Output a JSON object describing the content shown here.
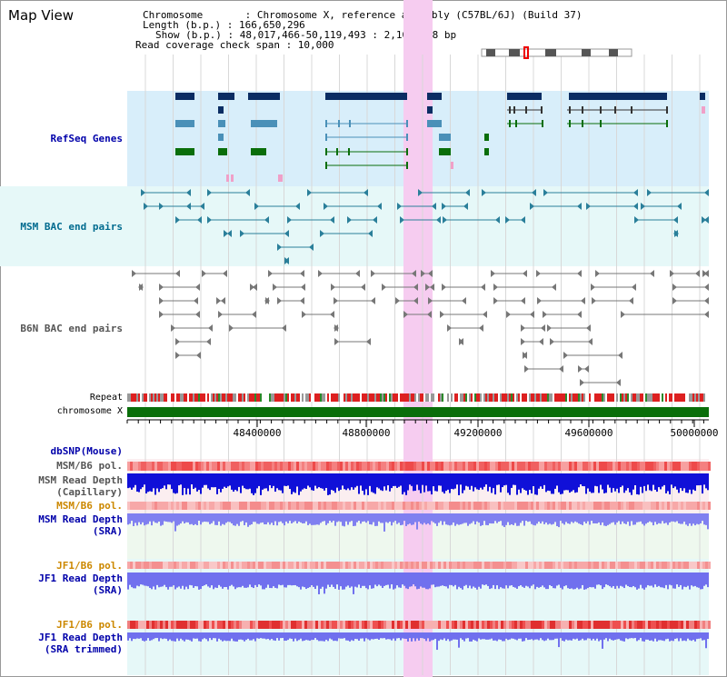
{
  "view_title": "Map View",
  "info": {
    "chromosome": "Chromosome       : Chromosome X, reference assembly (C57BL/6J) (Build 37)",
    "length": "Length (b.p.) : 166,650,296",
    "show": "Show (b.p.) : 48,017,466-50,119,493 : 2,102,028 bp",
    "coverage": "Read coverage check span : 10,000"
  },
  "tracks": {
    "refseq": "RefSeq Genes",
    "msm_bac": "MSM BAC end pairs",
    "b6n_bac": "B6N BAC end pairs",
    "repeat": "Repeat",
    "chromosome": "chromosome X",
    "dbsnp": "dbSNP(Mouse)",
    "msm_b6_pol_1": "MSM/B6 pol.",
    "msm_read_depth_cap_1": "MSM Read Depth",
    "msm_read_depth_cap_2": "(Capillary)",
    "msm_b6_pol_2": "MSM/B6 pol.",
    "msm_read_depth_sra_1": "MSM Read Depth",
    "msm_read_depth_sra_2": "(SRA)",
    "jf1_b6_pol_1": "JF1/B6 pol.",
    "jf1_read_depth_sra_1": "JF1 Read Depth",
    "jf1_read_depth_sra_2": "(SRA)",
    "jf1_b6_pol_2": "JF1/B6 pol.",
    "jf1_read_depth_trim_1": "JF1 Read Depth",
    "jf1_read_depth_trim_2": "(SRA trimmed)"
  },
  "axis": {
    "ticks": [
      "48400000",
      "48800000",
      "49200000",
      "49600000",
      "50000000"
    ]
  },
  "colors": {
    "label_blue": "#0000aa",
    "label_teal": "#006b8f",
    "label_gray": "#555555",
    "label_orange": "#cc8800",
    "highlight": "#f6ccf0",
    "refseq_bg": "#d8eefa",
    "bac_bg": "#e6f8f8"
  }
}
